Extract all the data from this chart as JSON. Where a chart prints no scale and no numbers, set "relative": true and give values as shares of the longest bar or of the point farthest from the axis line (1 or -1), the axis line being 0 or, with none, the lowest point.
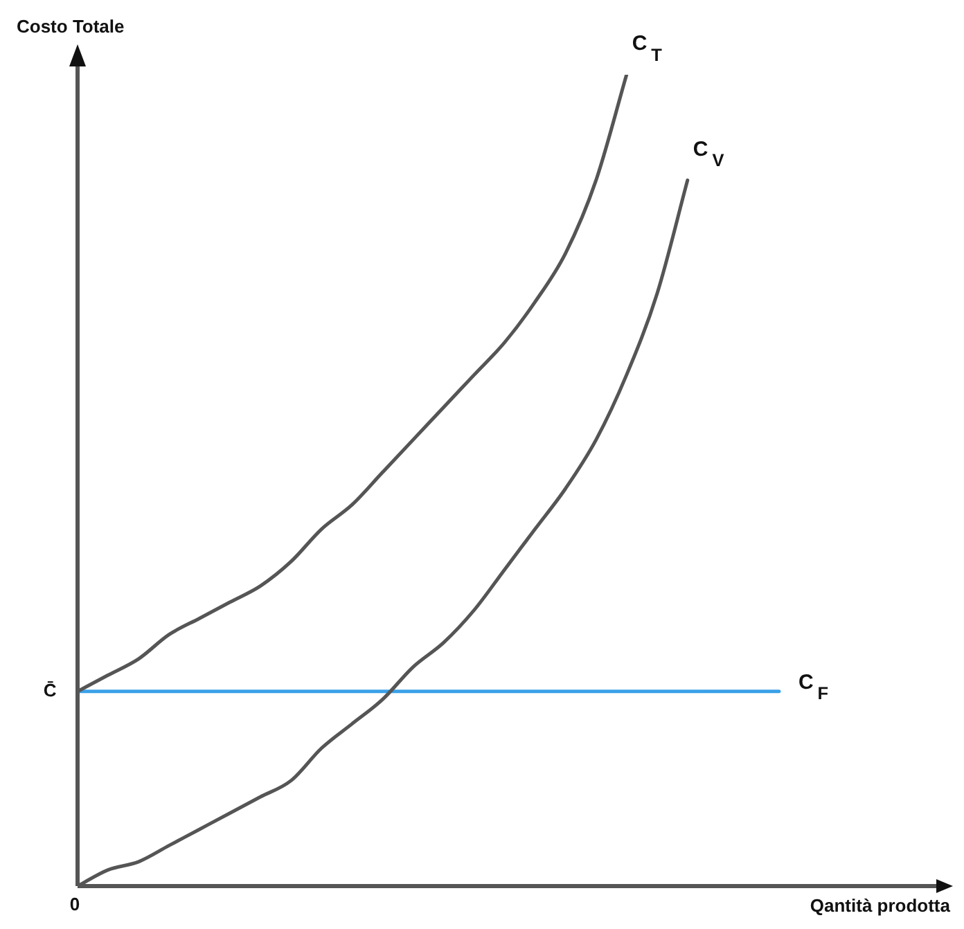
{
  "chart_data": {
    "type": "line",
    "relative": true,
    "xlabel": "Qantità prodotta",
    "ylabel": "Costo Totale",
    "categories": [
      null,
      null,
      null,
      null,
      null,
      null,
      null,
      null,
      null,
      null,
      null,
      null,
      null,
      null,
      null,
      null,
      null,
      null,
      null,
      null,
      null,
      null,
      null,
      null
    ],
    "series": [
      {
        "name": "C$_{T}$",
        "color": "#555555",
        "values": [
          0.24,
          0.26,
          0.28,
          0.31,
          0.33,
          0.35,
          0.37,
          0.4,
          0.44,
          0.47,
          0.51,
          0.55,
          0.59,
          0.63,
          0.67,
          0.72,
          0.78,
          0.87,
          1,
          null,
          null,
          null,
          null,
          null
        ]
      },
      {
        "name": "C$_{V}$",
        "color": "#555555",
        "values": [
          0,
          0.02,
          0.03,
          0.05,
          0.07,
          0.09,
          0.11,
          0.13,
          0.17,
          0.2,
          0.23,
          0.27,
          0.3,
          0.34,
          0.39,
          0.44,
          0.49,
          0.55,
          0.63,
          0.73,
          0.87,
          null,
          null,
          null
        ]
      },
      {
        "name": "C$_{F}$",
        "color": "#3aa0e8",
        "values": [
          0.24,
          0.24,
          0.24,
          0.24,
          0.24,
          0.24,
          0.24,
          0.24,
          0.24,
          0.24,
          0.24,
          0.24,
          0.24,
          0.24,
          0.24,
          0.24,
          0.24,
          0.24,
          0.24,
          0.24,
          0.24,
          0.24,
          0.24,
          0.24
        ]
      }
    ],
    "annotations": [
      "C̄",
      "0"
    ],
    "legend": false,
    "marker": "none",
    "line_style": "solid"
  }
}
